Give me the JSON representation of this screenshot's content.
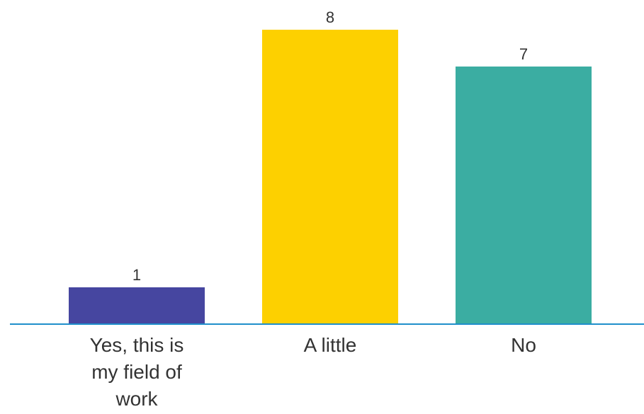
{
  "chart_data": {
    "type": "bar",
    "title": "",
    "xlabel": "",
    "ylabel": "",
    "categories": [
      "Yes, this is my field of work",
      "A little",
      "No"
    ],
    "category_label_lines": [
      [
        "Yes, this is",
        "my field of",
        "work"
      ],
      [
        "A little"
      ],
      [
        "No"
      ]
    ],
    "values": [
      1,
      8,
      7
    ],
    "colors": [
      "#4646a0",
      "#fdd000",
      "#3bada2"
    ],
    "value_labels": [
      "1",
      "8",
      "7"
    ],
    "ylim": [
      0,
      8
    ],
    "grid": false,
    "legend": "none",
    "axis_color": "#1f8fcb"
  }
}
